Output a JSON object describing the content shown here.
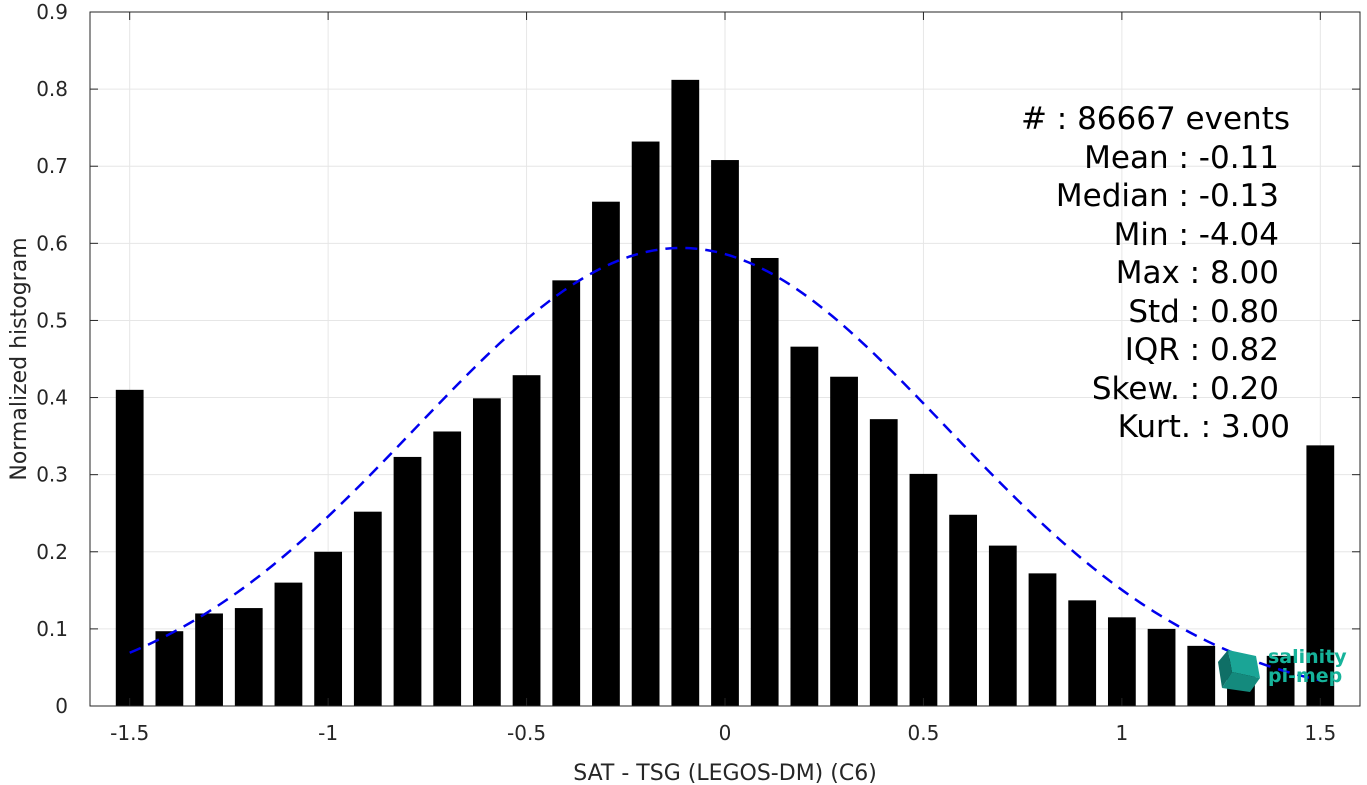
{
  "chart_data": {
    "type": "bar",
    "xlabel": "SAT - TSG (LEGOS-DM) (C6)",
    "ylabel": "Normalized histogram",
    "xlim": [
      -1.6,
      1.6
    ],
    "ylim": [
      0,
      0.9
    ],
    "xticks": [
      -1.5,
      -1,
      -0.5,
      0,
      0.5,
      1,
      1.5
    ],
    "xtick_labels": [
      "-1.5",
      "-1",
      "-0.5",
      "0",
      "0.5",
      "1",
      "1.5"
    ],
    "yticks": [
      0,
      0.1,
      0.2,
      0.3,
      0.4,
      0.5,
      0.6,
      0.7,
      0.8,
      0.9
    ],
    "ytick_labels": [
      "0",
      "0.1",
      "0.2",
      "0.3",
      "0.4",
      "0.5",
      "0.6",
      "0.7",
      "0.8",
      "0.9"
    ],
    "grid": true,
    "bar_color": "#000000",
    "x": [
      -1.5,
      -1.4,
      -1.3,
      -1.2,
      -1.1,
      -1.0,
      -0.9,
      -0.8,
      -0.7,
      -0.6,
      -0.5,
      -0.4,
      -0.3,
      -0.2,
      -0.1,
      0.0,
      0.1,
      0.2,
      0.3,
      0.4,
      0.5,
      0.6,
      0.7,
      0.8,
      0.9,
      1.0,
      1.1,
      1.2,
      1.3,
      1.4,
      1.5
    ],
    "values": [
      0.41,
      0.097,
      0.12,
      0.127,
      0.16,
      0.2,
      0.252,
      0.323,
      0.356,
      0.399,
      0.429,
      0.552,
      0.654,
      0.732,
      0.812,
      0.708,
      0.581,
      0.466,
      0.427,
      0.372,
      0.301,
      0.248,
      0.208,
      0.172,
      0.137,
      0.115,
      0.1,
      0.078,
      0.062,
      0.065,
      0.338
    ],
    "fit": {
      "type": "gaussian",
      "mean": -0.11,
      "std": 0.67,
      "peak": 0.594,
      "x_range": [
        -1.5,
        1.5
      ],
      "color": "#0000ee",
      "style": "dashed"
    },
    "stats_lines": [
      "#  : 86667 events",
      "Mean : -0.11",
      "Median : -0.13",
      "Min : -4.04",
      "Max : 8.00",
      "Std : 0.80",
      "IQR : 0.82",
      "Skew. : 0.20",
      "Kurt. : 3.00"
    ]
  },
  "logo": {
    "line1": "salinity",
    "line2": "pi-mep"
  }
}
